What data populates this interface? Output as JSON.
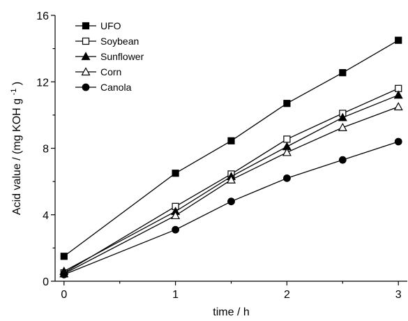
{
  "chart_data": {
    "type": "line",
    "xlabel": "time / h",
    "ylabel_main": "Acid value / (mg KOH g",
    "ylabel_sup": "-1",
    "ylabel_tail": ")",
    "xlim": [
      -0.08,
      3.08
    ],
    "ylim": [
      0,
      16
    ],
    "x_ticks": [
      0,
      1,
      2,
      3
    ],
    "y_ticks": [
      0,
      4,
      8,
      12,
      16
    ],
    "legend_position": "top-left",
    "x": [
      0,
      1,
      1.5,
      2,
      2.5,
      3
    ],
    "series": [
      {
        "name": "UFO",
        "marker": "square",
        "filled": true,
        "values": [
          1.5,
          6.5,
          8.45,
          10.7,
          12.55,
          14.5
        ]
      },
      {
        "name": "Soybean",
        "marker": "square",
        "filled": false,
        "values": [
          0.5,
          4.5,
          6.45,
          8.55,
          10.1,
          11.6
        ]
      },
      {
        "name": "Sunflower",
        "marker": "triangle",
        "filled": true,
        "values": [
          0.6,
          4.2,
          6.3,
          8.1,
          9.85,
          11.2
        ]
      },
      {
        "name": "Corn",
        "marker": "triangle",
        "filled": false,
        "values": [
          0.45,
          3.95,
          6.1,
          7.75,
          9.25,
          10.5
        ]
      },
      {
        "name": "Canola",
        "marker": "circle",
        "filled": true,
        "values": [
          0.4,
          3.1,
          4.8,
          6.2,
          7.3,
          8.4
        ]
      }
    ]
  }
}
